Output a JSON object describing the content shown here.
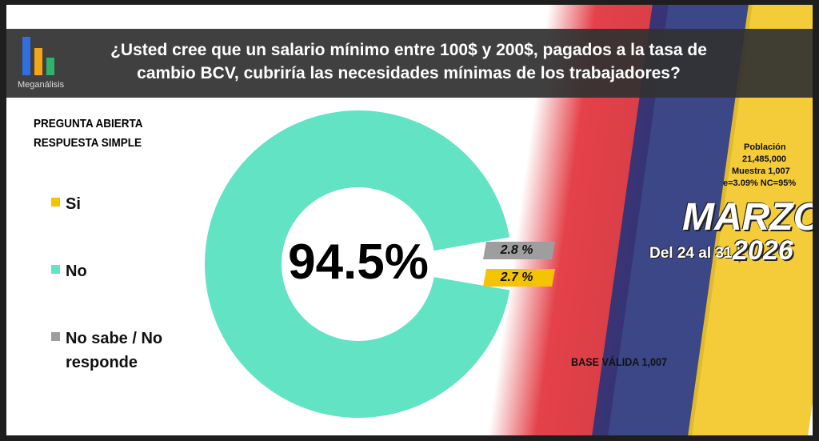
{
  "chart_data": {
    "type": "donut",
    "brand": "Meganálisis",
    "title": "¿Usted cree que un salario mínimo entre 100$ y 200$, pagados a la tasa de cambio BCV, cubriría las necesidades mínimas de los trabajadores?",
    "subtitle_lines": [
      "PREGUNTA  ABIERTA",
      "RESPUESTA SIMPLE"
    ],
    "categories": [
      "Si",
      "No",
      "No sabe / No responde"
    ],
    "values": [
      2.7,
      94.5,
      2.8
    ],
    "value_labels": [
      "2.7 %",
      "94.5%",
      "2.8 %"
    ],
    "colors": [
      "#f5c400",
      "#62e3c3",
      "#9e9e9e"
    ],
    "sample_notes": [
      "Población",
      "21,485,000",
      "Muestra 1,007",
      "e=3.09%  NC=95%"
    ],
    "period_month": "MARZO",
    "period_days": "Del 24 al 31 |",
    "period_year": "2026",
    "base_note": "BASE VÁLIDA 1,007"
  }
}
